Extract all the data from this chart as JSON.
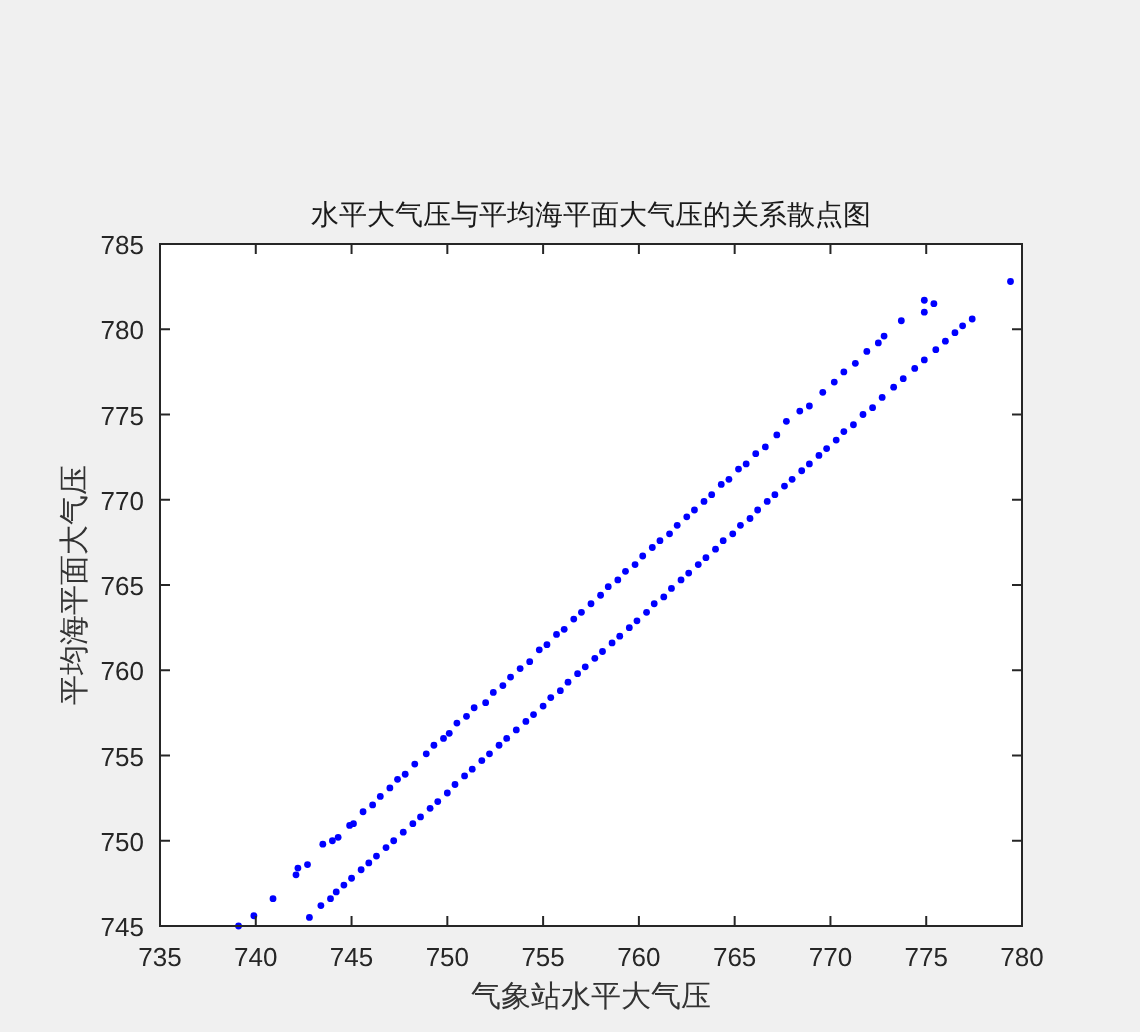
{
  "chart_data": {
    "type": "scatter",
    "title": "水平大气压与平均海平面大气压的关系散点图",
    "xlabel": "气象站水平大气压",
    "ylabel": "平均海平面大气压",
    "x": [
      739.1,
      739.9,
      740.9,
      742.1,
      742.2,
      742.7,
      743.5,
      744.0,
      744.3,
      744.9,
      745.1,
      745.6,
      746.1,
      746.5,
      747.0,
      747.4,
      747.8,
      748.3,
      748.9,
      749.3,
      749.8,
      750.1,
      750.5,
      751.0,
      751.4,
      752.0,
      752.4,
      752.9,
      753.3,
      753.8,
      754.3,
      754.8,
      755.2,
      755.7,
      756.1,
      756.6,
      757.0,
      757.5,
      758.0,
      758.4,
      758.9,
      759.3,
      759.8,
      760.2,
      760.7,
      761.1,
      761.6,
      762.0,
      762.5,
      762.9,
      763.4,
      763.8,
      764.3,
      764.7,
      765.2,
      765.6,
      766.1,
      766.6,
      767.2,
      767.7,
      768.4,
      768.9,
      769.6,
      770.2,
      770.7,
      771.3,
      771.9,
      772.5,
      772.8,
      773.7,
      774.9,
      774.9,
      775.4,
      742.8,
      743.4,
      743.9,
      744.2,
      744.6,
      745.0,
      745.5,
      745.9,
      746.3,
      746.8,
      747.2,
      747.7,
      748.2,
      748.6,
      749.1,
      749.5,
      750.0,
      750.4,
      750.9,
      751.3,
      751.8,
      752.2,
      752.7,
      753.1,
      753.6,
      754.1,
      754.5,
      755.0,
      755.4,
      755.9,
      756.3,
      756.8,
      757.2,
      757.7,
      758.1,
      758.6,
      759.0,
      759.5,
      759.9,
      760.4,
      760.8,
      761.3,
      761.7,
      762.2,
      762.6,
      763.1,
      763.5,
      764.0,
      764.4,
      764.9,
      765.3,
      765.8,
      766.2,
      766.7,
      767.1,
      767.6,
      768.0,
      768.5,
      768.9,
      769.4,
      769.8,
      770.3,
      770.7,
      771.2,
      771.7,
      772.2,
      772.7,
      773.3,
      773.8,
      774.4,
      774.9,
      775.5,
      776.0,
      776.5,
      776.9,
      777.4,
      779.4
    ],
    "values": [
      745.0,
      745.6,
      746.6,
      748.0,
      748.4,
      748.6,
      749.8,
      750.0,
      750.2,
      750.9,
      751.0,
      751.7,
      752.1,
      752.6,
      753.1,
      753.6,
      753.9,
      754.5,
      755.1,
      755.6,
      756.0,
      756.3,
      756.9,
      757.3,
      757.8,
      758.1,
      758.7,
      759.1,
      759.6,
      760.1,
      760.5,
      761.2,
      761.5,
      762.1,
      762.4,
      763.0,
      763.4,
      763.9,
      764.4,
      764.9,
      765.3,
      765.8,
      766.2,
      766.7,
      767.2,
      767.6,
      768.0,
      768.5,
      769.0,
      769.4,
      769.9,
      770.3,
      770.9,
      771.2,
      771.8,
      772.1,
      772.7,
      773.1,
      773.8,
      774.6,
      775.2,
      775.5,
      776.3,
      776.9,
      777.5,
      778.0,
      778.7,
      779.2,
      779.6,
      780.5,
      781.0,
      781.7,
      781.5,
      745.5,
      746.2,
      746.6,
      747.0,
      747.4,
      747.8,
      748.3,
      748.7,
      749.1,
      749.6,
      750.0,
      750.5,
      751.0,
      751.4,
      751.9,
      752.3,
      752.8,
      753.3,
      753.8,
      754.2,
      754.7,
      755.1,
      755.6,
      756.0,
      756.5,
      757.0,
      757.4,
      757.9,
      758.4,
      758.8,
      759.3,
      759.8,
      760.2,
      760.7,
      761.1,
      761.6,
      762.0,
      762.5,
      762.9,
      763.4,
      763.9,
      764.3,
      764.8,
      765.3,
      765.7,
      766.2,
      766.6,
      767.1,
      767.6,
      768.0,
      768.5,
      768.9,
      769.4,
      769.9,
      770.3,
      770.8,
      771.2,
      771.7,
      772.1,
      772.6,
      773.0,
      773.5,
      774.0,
      774.4,
      775.0,
      775.4,
      776.0,
      776.6,
      777.1,
      777.7,
      778.2,
      778.8,
      779.3,
      779.8,
      780.2,
      780.6,
      782.8
    ],
    "color": "#0000ff",
    "marker": "circle",
    "xlim": [
      735,
      780
    ],
    "ylim": [
      745,
      785
    ],
    "xticks": [
      735,
      740,
      745,
      750,
      755,
      760,
      765,
      770,
      775,
      780
    ],
    "yticks": [
      745,
      750,
      755,
      760,
      765,
      770,
      775,
      780,
      785
    ]
  }
}
